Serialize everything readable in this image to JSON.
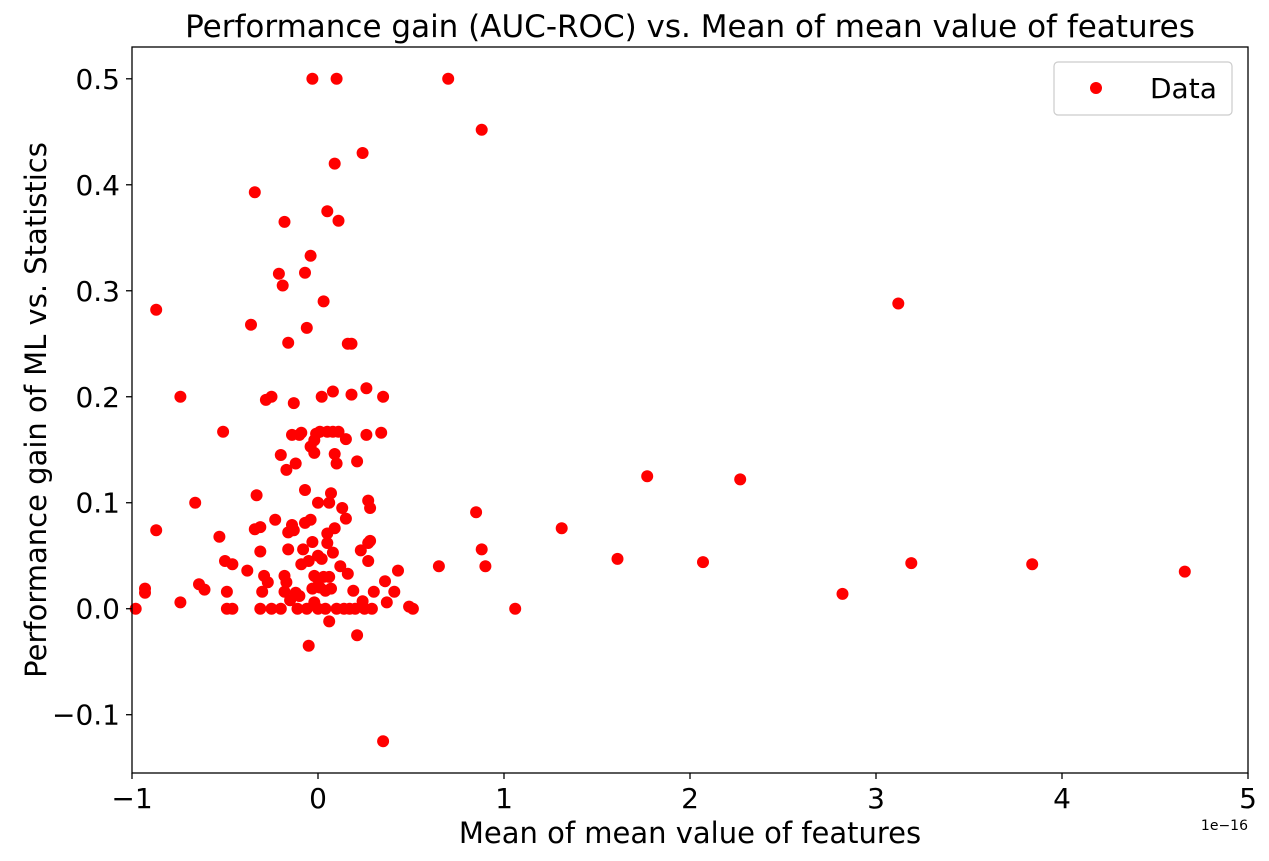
{
  "chart_data": {
    "type": "scatter",
    "title": "Performance gain (AUC-ROC) vs. Mean of mean value of features",
    "xlabel": "Mean of mean value of features",
    "ylabel": "Performance gain of ML vs. Statistics",
    "x_offset_label": "1e−16",
    "xlim": [
      -1,
      5
    ],
    "ylim": [
      -0.155,
      0.53
    ],
    "xticks": [
      -1,
      0,
      1,
      2,
      3,
      4,
      5
    ],
    "xtick_labels": [
      "−1",
      "0",
      "1",
      "2",
      "3",
      "4",
      "5"
    ],
    "yticks": [
      -0.1,
      0.0,
      0.1,
      0.2,
      0.3,
      0.4,
      0.5
    ],
    "ytick_labels": [
      "−0.1",
      "0.0",
      "0.1",
      "0.2",
      "0.3",
      "0.4",
      "0.5"
    ],
    "grid": false,
    "legend": {
      "position": "top-right",
      "entries": [
        "Data"
      ]
    },
    "series": [
      {
        "name": "Data",
        "color": "#ff0000",
        "marker": "circle",
        "points": [
          [
            -0.98,
            0.0
          ],
          [
            -0.93,
            0.019
          ],
          [
            -0.93,
            0.015
          ],
          [
            -0.87,
            0.282
          ],
          [
            -0.87,
            0.074
          ],
          [
            -0.74,
            0.2
          ],
          [
            -0.74,
            0.006
          ],
          [
            -0.66,
            0.1
          ],
          [
            -0.64,
            0.023
          ],
          [
            -0.61,
            0.018
          ],
          [
            -0.53,
            0.068
          ],
          [
            -0.51,
            0.167
          ],
          [
            -0.5,
            0.045
          ],
          [
            -0.49,
            0.016
          ],
          [
            -0.49,
            0.0
          ],
          [
            -0.46,
            0.0
          ],
          [
            -0.46,
            0.042
          ],
          [
            -0.38,
            0.036
          ],
          [
            -0.36,
            0.268
          ],
          [
            -0.34,
            0.393
          ],
          [
            -0.34,
            0.075
          ],
          [
            -0.33,
            0.107
          ],
          [
            -0.31,
            0.077
          ],
          [
            -0.31,
            0.054
          ],
          [
            -0.31,
            0.0
          ],
          [
            -0.3,
            0.016
          ],
          [
            -0.29,
            0.031
          ],
          [
            -0.28,
            0.197
          ],
          [
            -0.27,
            0.025
          ],
          [
            -0.25,
            0.2
          ],
          [
            -0.25,
            0.0
          ],
          [
            -0.23,
            0.084
          ],
          [
            -0.21,
            0.316
          ],
          [
            -0.2,
            0.145
          ],
          [
            -0.2,
            0.0
          ],
          [
            -0.19,
            0.305
          ],
          [
            -0.18,
            0.365
          ],
          [
            -0.18,
            0.016
          ],
          [
            -0.18,
            0.031
          ],
          [
            -0.17,
            0.025
          ],
          [
            -0.17,
            0.131
          ],
          [
            -0.16,
            0.251
          ],
          [
            -0.16,
            0.056
          ],
          [
            -0.16,
            0.072
          ],
          [
            -0.15,
            0.008
          ],
          [
            -0.14,
            0.164
          ],
          [
            -0.14,
            0.079
          ],
          [
            -0.13,
            0.194
          ],
          [
            -0.13,
            0.074
          ],
          [
            -0.12,
            0.137
          ],
          [
            -0.12,
            0.015
          ],
          [
            -0.11,
            0.0
          ],
          [
            -0.1,
            0.012
          ],
          [
            -0.1,
            0.164
          ],
          [
            -0.09,
            0.166
          ],
          [
            -0.09,
            0.042
          ],
          [
            -0.08,
            0.056
          ],
          [
            -0.07,
            0.112
          ],
          [
            -0.07,
            0.317
          ],
          [
            -0.07,
            0.081
          ],
          [
            -0.06,
            0.265
          ],
          [
            -0.06,
            0.0
          ],
          [
            -0.05,
            0.045
          ],
          [
            -0.05,
            -0.035
          ],
          [
            -0.04,
            0.153
          ],
          [
            -0.04,
            0.084
          ],
          [
            -0.04,
            0.333
          ],
          [
            -0.03,
            0.5
          ],
          [
            -0.03,
            0.063
          ],
          [
            -0.03,
            0.019
          ],
          [
            -0.02,
            0.159
          ],
          [
            -0.02,
            0.147
          ],
          [
            -0.02,
            0.031
          ],
          [
            -0.02,
            0.006
          ],
          [
            -0.01,
            0.165
          ],
          [
            0.0,
            0.1
          ],
          [
            0.0,
            0.05
          ],
          [
            0.0,
            0.028
          ],
          [
            0.0,
            0.0
          ],
          [
            0.01,
            0.167
          ],
          [
            0.01,
            0.02
          ],
          [
            0.02,
            0.047
          ],
          [
            0.02,
            0.2
          ],
          [
            0.03,
            0.29
          ],
          [
            0.03,
            0.03
          ],
          [
            0.04,
            0.0
          ],
          [
            0.04,
            0.017
          ],
          [
            0.05,
            0.375
          ],
          [
            0.05,
            0.071
          ],
          [
            0.05,
            0.167
          ],
          [
            0.05,
            0.062
          ],
          [
            0.06,
            0.03
          ],
          [
            0.06,
            -0.012
          ],
          [
            0.06,
            0.1
          ],
          [
            0.07,
            0.109
          ],
          [
            0.07,
            0.019
          ],
          [
            0.08,
            0.205
          ],
          [
            0.08,
            0.167
          ],
          [
            0.08,
            0.053
          ],
          [
            0.09,
            0.42
          ],
          [
            0.09,
            0.146
          ],
          [
            0.09,
            0.076
          ],
          [
            0.1,
            0.5
          ],
          [
            0.1,
            0.137
          ],
          [
            0.1,
            0.0
          ],
          [
            0.11,
            0.167
          ],
          [
            0.11,
            0.366
          ],
          [
            0.12,
            0.04
          ],
          [
            0.13,
            0.095
          ],
          [
            0.14,
            0.0
          ],
          [
            0.15,
            0.085
          ],
          [
            0.15,
            0.16
          ],
          [
            0.16,
            0.25
          ],
          [
            0.16,
            0.033
          ],
          [
            0.17,
            0.0
          ],
          [
            0.18,
            0.202
          ],
          [
            0.18,
            0.25
          ],
          [
            0.19,
            0.017
          ],
          [
            0.2,
            0.0
          ],
          [
            0.21,
            0.139
          ],
          [
            0.21,
            -0.025
          ],
          [
            0.23,
            0.055
          ],
          [
            0.24,
            0.43
          ],
          [
            0.24,
            0.007
          ],
          [
            0.25,
            0.0
          ],
          [
            0.26,
            0.208
          ],
          [
            0.26,
            0.164
          ],
          [
            0.27,
            0.062
          ],
          [
            0.27,
            0.102
          ],
          [
            0.27,
            0.045
          ],
          [
            0.28,
            0.095
          ],
          [
            0.28,
            0.064
          ],
          [
            0.29,
            0.0
          ],
          [
            0.3,
            0.016
          ],
          [
            0.34,
            0.166
          ],
          [
            0.35,
            0.2
          ],
          [
            0.35,
            -0.125
          ],
          [
            0.36,
            0.026
          ],
          [
            0.37,
            0.006
          ],
          [
            0.41,
            0.016
          ],
          [
            0.43,
            0.036
          ],
          [
            0.49,
            0.002
          ],
          [
            0.51,
            0.0
          ],
          [
            0.65,
            0.04
          ],
          [
            0.7,
            0.5
          ],
          [
            0.85,
            0.091
          ],
          [
            0.88,
            0.056
          ],
          [
            0.88,
            0.452
          ],
          [
            0.9,
            0.04
          ],
          [
            1.06,
            0.0
          ],
          [
            1.31,
            0.076
          ],
          [
            1.61,
            0.047
          ],
          [
            1.77,
            0.125
          ],
          [
            2.07,
            0.044
          ],
          [
            2.27,
            0.122
          ],
          [
            2.82,
            0.014
          ],
          [
            3.12,
            0.288
          ],
          [
            3.19,
            0.043
          ],
          [
            3.84,
            0.042
          ],
          [
            4.66,
            0.035
          ]
        ]
      }
    ]
  }
}
